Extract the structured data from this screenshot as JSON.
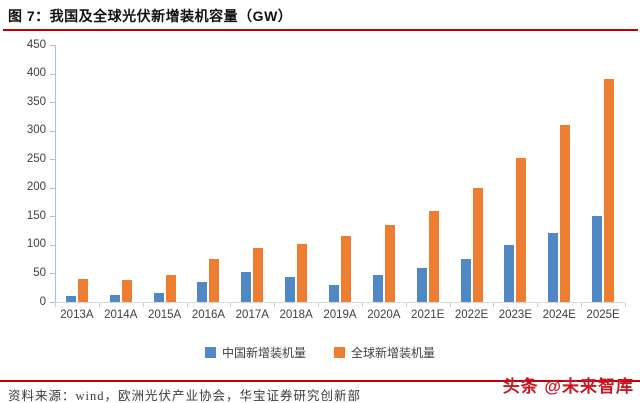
{
  "title": "图 7：我国及全球光伏新增装机容量（GW）",
  "chart_data": {
    "type": "bar",
    "title": "我国及全球光伏新增装机容量（GW）",
    "categories": [
      "2013A",
      "2014A",
      "2015A",
      "2016A",
      "2017A",
      "2018A",
      "2019A",
      "2020A",
      "2021E",
      "2022E",
      "2023E",
      "2024E",
      "2025E"
    ],
    "series": [
      {
        "name": "中国新增装机量",
        "color": "#5087c5",
        "values": [
          11,
          12,
          15,
          35,
          53,
          44,
          30,
          48,
          60,
          75,
          100,
          120,
          150
        ]
      },
      {
        "name": "全球新增装机量",
        "color": "#ed7d31",
        "values": [
          40,
          38,
          48,
          76,
          95,
          102,
          115,
          135,
          160,
          200,
          252,
          310,
          390
        ]
      }
    ],
    "xlabel": "",
    "ylabel": "",
    "ylim": [
      0,
      450
    ],
    "ytick_step": 50,
    "grid": false,
    "legend_position": "bottom"
  },
  "footer": {
    "source": "资料来源：wind，欧洲光伏产业协会，华宝证券研究创新部",
    "watermark": "头条 @未来智库"
  },
  "colors": {
    "title_rule": "#c00000",
    "bottom_rule": "#c00000",
    "china_bar": "#5087c5",
    "global_bar": "#ed7d31",
    "y_axis": "#9dc3e6",
    "x_axis": "#d9d9d9",
    "tick_label": "#404040",
    "watermark_red": "#c81623"
  }
}
